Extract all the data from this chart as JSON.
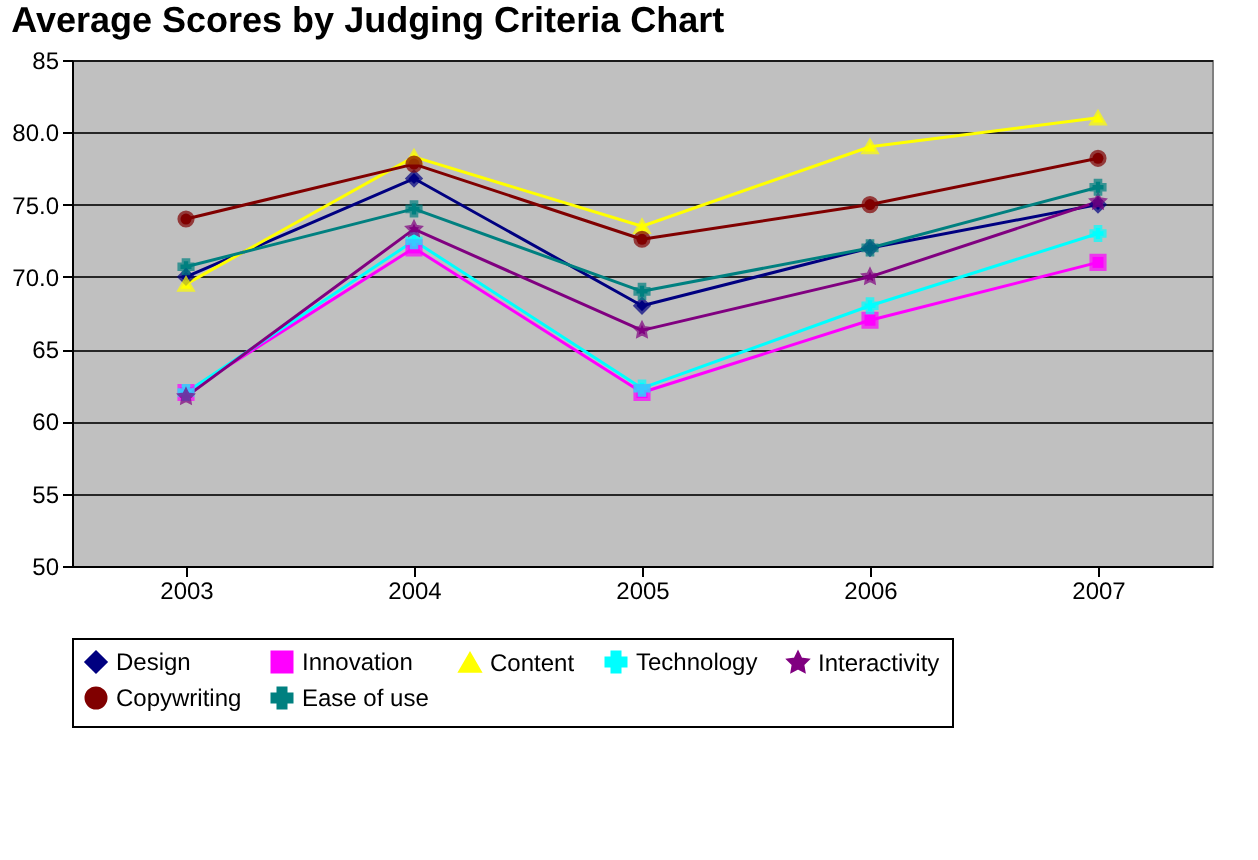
{
  "chart_data": {
    "type": "line",
    "title": "Average Scores by Judging Criteria Chart",
    "categories": [
      "2003",
      "2004",
      "2005",
      "2006",
      "2007"
    ],
    "series": [
      {
        "name": "Design",
        "color": "#000080",
        "marker": "diamond",
        "values": [
          70,
          76.8,
          68,
          72,
          75
        ]
      },
      {
        "name": "Innovation",
        "color": "#ff00ff",
        "marker": "square",
        "values": [
          62,
          72,
          62,
          67,
          71
        ]
      },
      {
        "name": "Content",
        "color": "#ffff00",
        "marker": "triangle",
        "values": [
          69.5,
          78.3,
          73.5,
          79,
          81
        ]
      },
      {
        "name": "Technology",
        "color": "#00ffff",
        "marker": "cross",
        "values": [
          62,
          72.5,
          62.3,
          68,
          73
        ]
      },
      {
        "name": "Interactivity",
        "color": "#800080",
        "marker": "star",
        "values": [
          61.7,
          73.3,
          66.3,
          70,
          75.2
        ]
      },
      {
        "name": "Copywriting",
        "color": "#800000",
        "marker": "circle",
        "values": [
          74,
          77.8,
          72.6,
          75,
          78.2
        ]
      },
      {
        "name": "Ease of use",
        "color": "#008080",
        "marker": "cross",
        "values": [
          70.7,
          74.7,
          69,
          72,
          76.2
        ]
      }
    ],
    "ylim": [
      50,
      85
    ],
    "yticks": [
      {
        "value": 50,
        "label": "50"
      },
      {
        "value": 55,
        "label": "55"
      },
      {
        "value": 60,
        "label": "60"
      },
      {
        "value": 65,
        "label": "65"
      },
      {
        "value": 70,
        "label": "70.0"
      },
      {
        "value": 75,
        "label": "75.0"
      },
      {
        "value": 80,
        "label": "80.0"
      },
      {
        "value": 85,
        "label": "85"
      }
    ],
    "grid": "y",
    "legend": "bottom",
    "line_style": "solid"
  }
}
